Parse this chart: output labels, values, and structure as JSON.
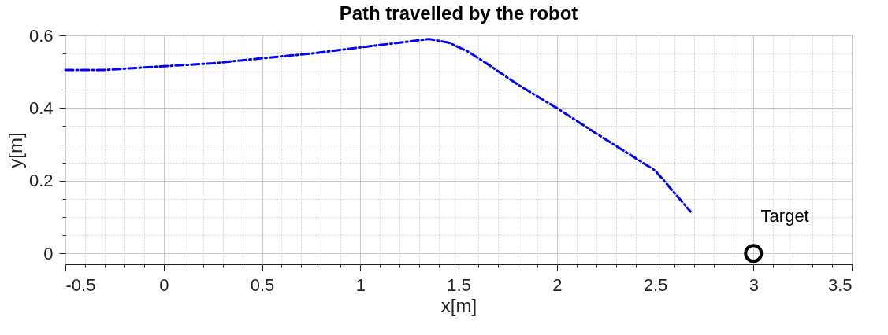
{
  "chart_data": {
    "type": "line",
    "title": "Path travelled by the robot",
    "xlabel": "x[m]",
    "ylabel": "y[m]",
    "series": [
      {
        "color": "#0000ff",
        "line_style": "dashed",
        "x": [
          -0.5,
          -0.3,
          0,
          0.25,
          0.5,
          0.75,
          1.0,
          1.2,
          1.35,
          1.45,
          1.55,
          1.65,
          1.8,
          2.0,
          2.2,
          2.4,
          2.5,
          2.68
        ],
        "values": [
          0.505,
          0.505,
          0.515,
          0.523,
          0.537,
          0.55,
          0.567,
          0.58,
          0.59,
          0.58,
          0.555,
          0.52,
          0.465,
          0.4,
          0.33,
          0.262,
          0.228,
          0.115
        ]
      },
      {
        "type": "scatter",
        "color": "#000000",
        "marker": "circle",
        "x": [
          3
        ],
        "values": [
          0
        ]
      }
    ],
    "annotations": [
      "Target"
    ],
    "xlim": [
      -0.5,
      3.5
    ],
    "xticks": [
      -0.5,
      {
        "value": -0.4,
        "label": null
      },
      {
        "value": -0.3,
        "label": null
      },
      {
        "value": -0.2,
        "label": null
      },
      {
        "value": -0.1,
        "label": null
      },
      0,
      {
        "value": 0.1,
        "label": null
      },
      {
        "value": 0.2,
        "label": null
      },
      {
        "value": 0.3,
        "label": null
      },
      {
        "value": 0.4,
        "label": null
      },
      0.5,
      {
        "value": 0.6,
        "label": null
      },
      {
        "value": 0.7,
        "label": null
      },
      {
        "value": 0.8,
        "label": null
      },
      {
        "value": 0.9,
        "label": null
      },
      1,
      {
        "value": 1.1,
        "label": null
      },
      {
        "value": 1.2,
        "label": null
      },
      {
        "value": 1.3,
        "label": null
      },
      {
        "value": 1.4,
        "label": null
      },
      1.5,
      {
        "value": 1.6,
        "label": null
      },
      {
        "value": 1.7,
        "label": null
      },
      {
        "value": 1.8,
        "label": null
      },
      {
        "value": 1.9,
        "label": null
      },
      2,
      {
        "value": 2.1,
        "label": null
      },
      {
        "value": 2.2,
        "label": null
      },
      {
        "value": 2.3,
        "label": null
      },
      {
        "value": 2.4,
        "label": null
      },
      2.5,
      {
        "value": 2.6,
        "label": null
      },
      {
        "value": 2.7,
        "label": null
      },
      {
        "value": 2.8,
        "label": null
      },
      {
        "value": 2.9,
        "label": null
      },
      3,
      {
        "value": 3.1,
        "label": null
      },
      {
        "value": 3.2,
        "label": null
      },
      {
        "value": 3.3,
        "label": null
      },
      {
        "value": 3.4,
        "label": null
      },
      3.5
    ],
    "ylim": [
      -0.03,
      0.6
    ],
    "yticks": [
      0,
      {
        "value": 0.05,
        "label": null
      },
      {
        "value": 0.1,
        "label": null
      },
      {
        "value": 0.15,
        "label": null
      },
      0.2,
      {
        "value": 0.25,
        "label": null
      },
      {
        "value": 0.3,
        "label": null
      },
      {
        "value": 0.35,
        "label": null
      },
      0.4,
      {
        "value": 0.45,
        "label": null
      },
      {
        "value": 0.5,
        "label": null
      },
      {
        "value": 0.55,
        "label": null
      },
      0.6
    ],
    "grid": true
  }
}
